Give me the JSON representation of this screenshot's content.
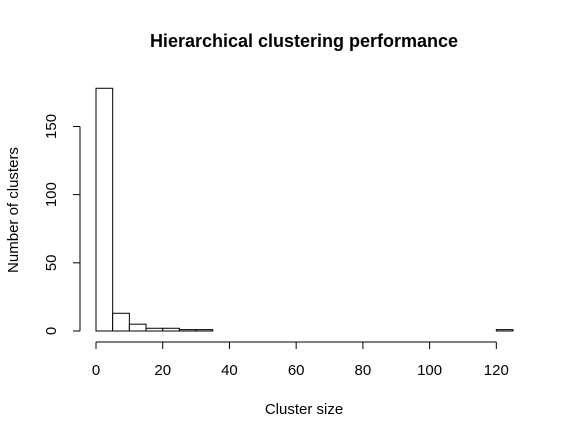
{
  "chart_data": {
    "type": "bar",
    "title": "Hierarchical clustering performance",
    "xlabel": "Cluster size",
    "ylabel": "Number of clusters",
    "bin_width": 5,
    "bins": [
      {
        "x0": 0,
        "x1": 5,
        "count": 178
      },
      {
        "x0": 5,
        "x1": 10,
        "count": 13
      },
      {
        "x0": 10,
        "x1": 15,
        "count": 5
      },
      {
        "x0": 15,
        "x1": 20,
        "count": 2
      },
      {
        "x0": 20,
        "x1": 25,
        "count": 2
      },
      {
        "x0": 25,
        "x1": 30,
        "count": 1
      },
      {
        "x0": 30,
        "x1": 35,
        "count": 1
      },
      {
        "x0": 35,
        "x1": 40,
        "count": 0
      },
      {
        "x0": 40,
        "x1": 45,
        "count": 0
      },
      {
        "x0": 45,
        "x1": 50,
        "count": 0
      },
      {
        "x0": 50,
        "x1": 55,
        "count": 0
      },
      {
        "x0": 55,
        "x1": 60,
        "count": 0
      },
      {
        "x0": 60,
        "x1": 65,
        "count": 0
      },
      {
        "x0": 65,
        "x1": 70,
        "count": 0
      },
      {
        "x0": 70,
        "x1": 75,
        "count": 0
      },
      {
        "x0": 75,
        "x1": 80,
        "count": 0
      },
      {
        "x0": 80,
        "x1": 85,
        "count": 0
      },
      {
        "x0": 85,
        "x1": 90,
        "count": 0
      },
      {
        "x0": 90,
        "x1": 95,
        "count": 0
      },
      {
        "x0": 95,
        "x1": 100,
        "count": 0
      },
      {
        "x0": 100,
        "x1": 105,
        "count": 0
      },
      {
        "x0": 105,
        "x1": 110,
        "count": 0
      },
      {
        "x0": 110,
        "x1": 115,
        "count": 0
      },
      {
        "x0": 115,
        "x1": 120,
        "count": 0
      },
      {
        "x0": 120,
        "x1": 125,
        "count": 1
      }
    ],
    "xlim": [
      0,
      125
    ],
    "ylim": [
      0,
      178
    ],
    "x_ticks": [
      0,
      20,
      40,
      60,
      80,
      100,
      120
    ],
    "y_ticks": [
      0,
      50,
      100,
      150
    ],
    "grid": false
  }
}
